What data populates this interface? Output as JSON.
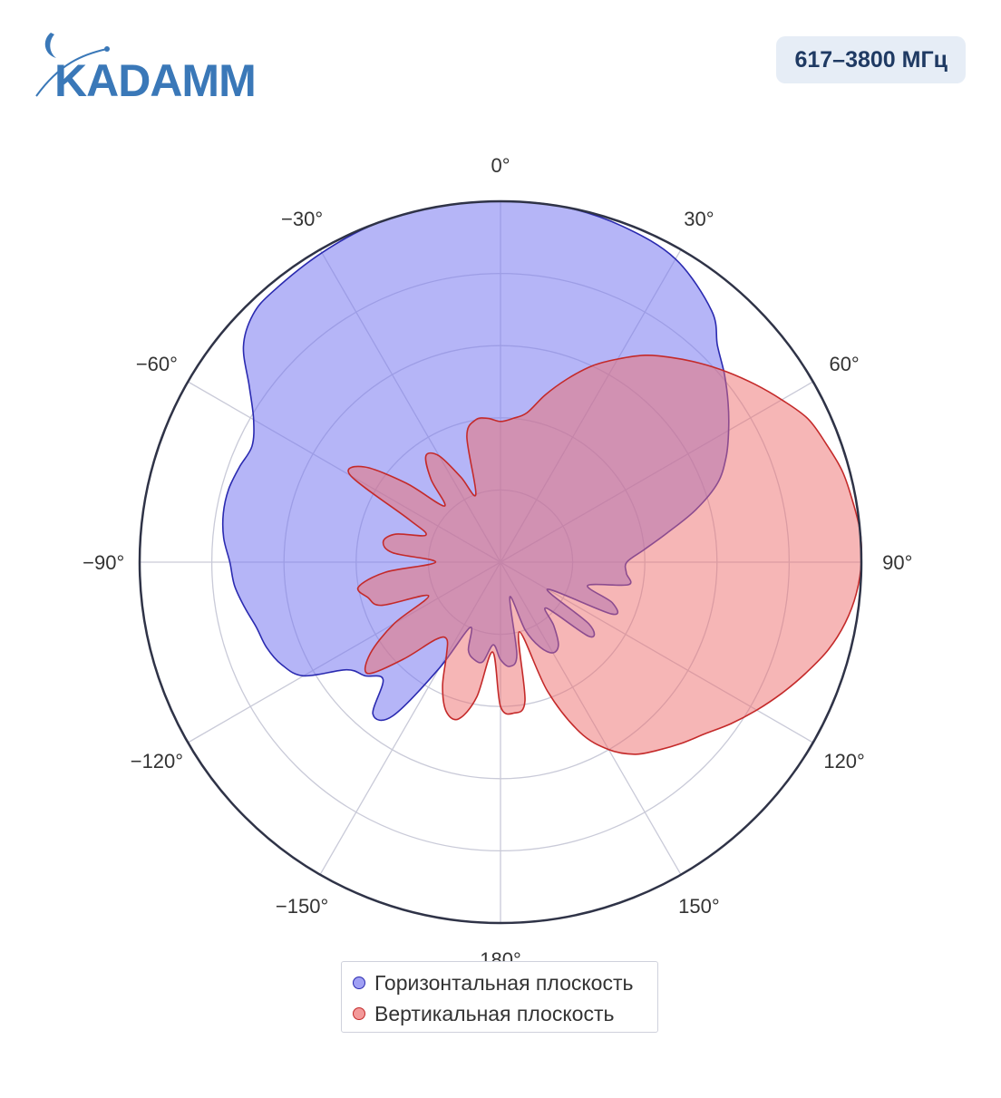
{
  "header": {
    "logo_text": "KADAMM",
    "frequency_badge": "617–3800 МГц"
  },
  "colors": {
    "brand_blue": "#3a78b8",
    "badge_bg": "#e6edf6",
    "badge_text": "#1f3a63",
    "horizontal_fill": "rgba(120,120,240,0.55)",
    "horizontal_line": "#2a2ab0",
    "vertical_fill": "rgba(238,110,110,0.5)",
    "vertical_line": "#c42a2a"
  },
  "chart_data": {
    "type": "polar",
    "angular_direction": "clockwise",
    "rotation_zero": "top",
    "angular_ticks": [
      {
        "angle": 0,
        "label": "0°"
      },
      {
        "angle": 30,
        "label": "30°"
      },
      {
        "angle": 60,
        "label": "60°"
      },
      {
        "angle": 90,
        "label": "90°"
      },
      {
        "angle": 120,
        "label": "120°"
      },
      {
        "angle": 150,
        "label": "150°"
      },
      {
        "angle": 180,
        "label": "180°"
      },
      {
        "angle": -150,
        "label": "−150°"
      },
      {
        "angle": -120,
        "label": "−120°"
      },
      {
        "angle": -90,
        "label": "−90°"
      },
      {
        "angle": -60,
        "label": "−60°"
      },
      {
        "angle": -30,
        "label": "−30°"
      }
    ],
    "radial_range": [
      0,
      1
    ],
    "radial_gridlines": [
      0.2,
      0.4,
      0.6,
      0.8,
      1.0
    ],
    "grid": true,
    "legend_position": "bottom-center",
    "series": [
      {
        "name": "Горизонтальная плоскость",
        "theta": [
          0,
          10,
          20,
          30,
          40,
          45,
          50,
          55,
          60,
          65,
          70,
          75,
          80,
          85,
          90,
          95,
          100,
          105,
          110,
          115,
          120,
          125,
          130,
          135,
          140,
          145,
          150,
          155,
          160,
          165,
          170,
          175,
          180,
          185,
          190,
          195,
          200,
          205,
          210,
          215,
          220,
          225,
          230,
          235,
          240,
          245,
          250,
          255,
          260,
          265,
          270,
          275,
          280,
          285,
          290,
          295,
          300,
          305,
          310,
          315,
          320,
          330,
          340,
          350,
          360
        ],
        "r": [
          1.0,
          1.0,
          0.99,
          0.97,
          0.91,
          0.85,
          0.81,
          0.77,
          0.73,
          0.69,
          0.64,
          0.56,
          0.47,
          0.4,
          0.35,
          0.35,
          0.36,
          0.25,
          0.33,
          0.34,
          0.15,
          0.3,
          0.32,
          0.18,
          0.23,
          0.28,
          0.29,
          0.26,
          0.2,
          0.1,
          0.26,
          0.29,
          0.27,
          0.23,
          0.28,
          0.28,
          0.26,
          0.2,
          0.34,
          0.52,
          0.55,
          0.46,
          0.49,
          0.52,
          0.63,
          0.67,
          0.69,
          0.7,
          0.72,
          0.74,
          0.75,
          0.77,
          0.78,
          0.78,
          0.77,
          0.76,
          0.79,
          0.85,
          0.93,
          0.97,
          0.98,
          0.99,
          1.0,
          1.0,
          1.0
        ],
        "color_key": "horizontal"
      },
      {
        "name": "Вертикальная плоскость",
        "theta": [
          0,
          5,
          10,
          15,
          20,
          25,
          30,
          35,
          40,
          45,
          50,
          55,
          60,
          65,
          70,
          75,
          80,
          85,
          90,
          95,
          100,
          105,
          110,
          115,
          120,
          125,
          130,
          135,
          140,
          145,
          150,
          155,
          160,
          165,
          170,
          175,
          180,
          185,
          190,
          195,
          200,
          205,
          210,
          215,
          220,
          225,
          230,
          235,
          240,
          245,
          250,
          255,
          260,
          265,
          270,
          275,
          280,
          285,
          290,
          295,
          300,
          305,
          310,
          315,
          320,
          325,
          330,
          335,
          340,
          345,
          350,
          355,
          360
        ],
        "r": [
          0.39,
          0.4,
          0.42,
          0.48,
          0.54,
          0.6,
          0.65,
          0.7,
          0.74,
          0.78,
          0.82,
          0.86,
          0.9,
          0.94,
          0.96,
          0.98,
          0.99,
          1.0,
          1.0,
          0.99,
          0.97,
          0.94,
          0.9,
          0.86,
          0.82,
          0.78,
          0.74,
          0.71,
          0.68,
          0.65,
          0.6,
          0.52,
          0.38,
          0.2,
          0.39,
          0.42,
          0.4,
          0.25,
          0.38,
          0.45,
          0.44,
          0.38,
          0.3,
          0.26,
          0.28,
          0.38,
          0.48,
          0.44,
          0.34,
          0.22,
          0.35,
          0.38,
          0.4,
          0.32,
          0.18,
          0.3,
          0.33,
          0.3,
          0.22,
          0.28,
          0.48,
          0.46,
          0.34,
          0.22,
          0.3,
          0.36,
          0.34,
          0.26,
          0.2,
          0.36,
          0.4,
          0.4,
          0.39
        ],
        "color_key": "vertical"
      }
    ]
  }
}
